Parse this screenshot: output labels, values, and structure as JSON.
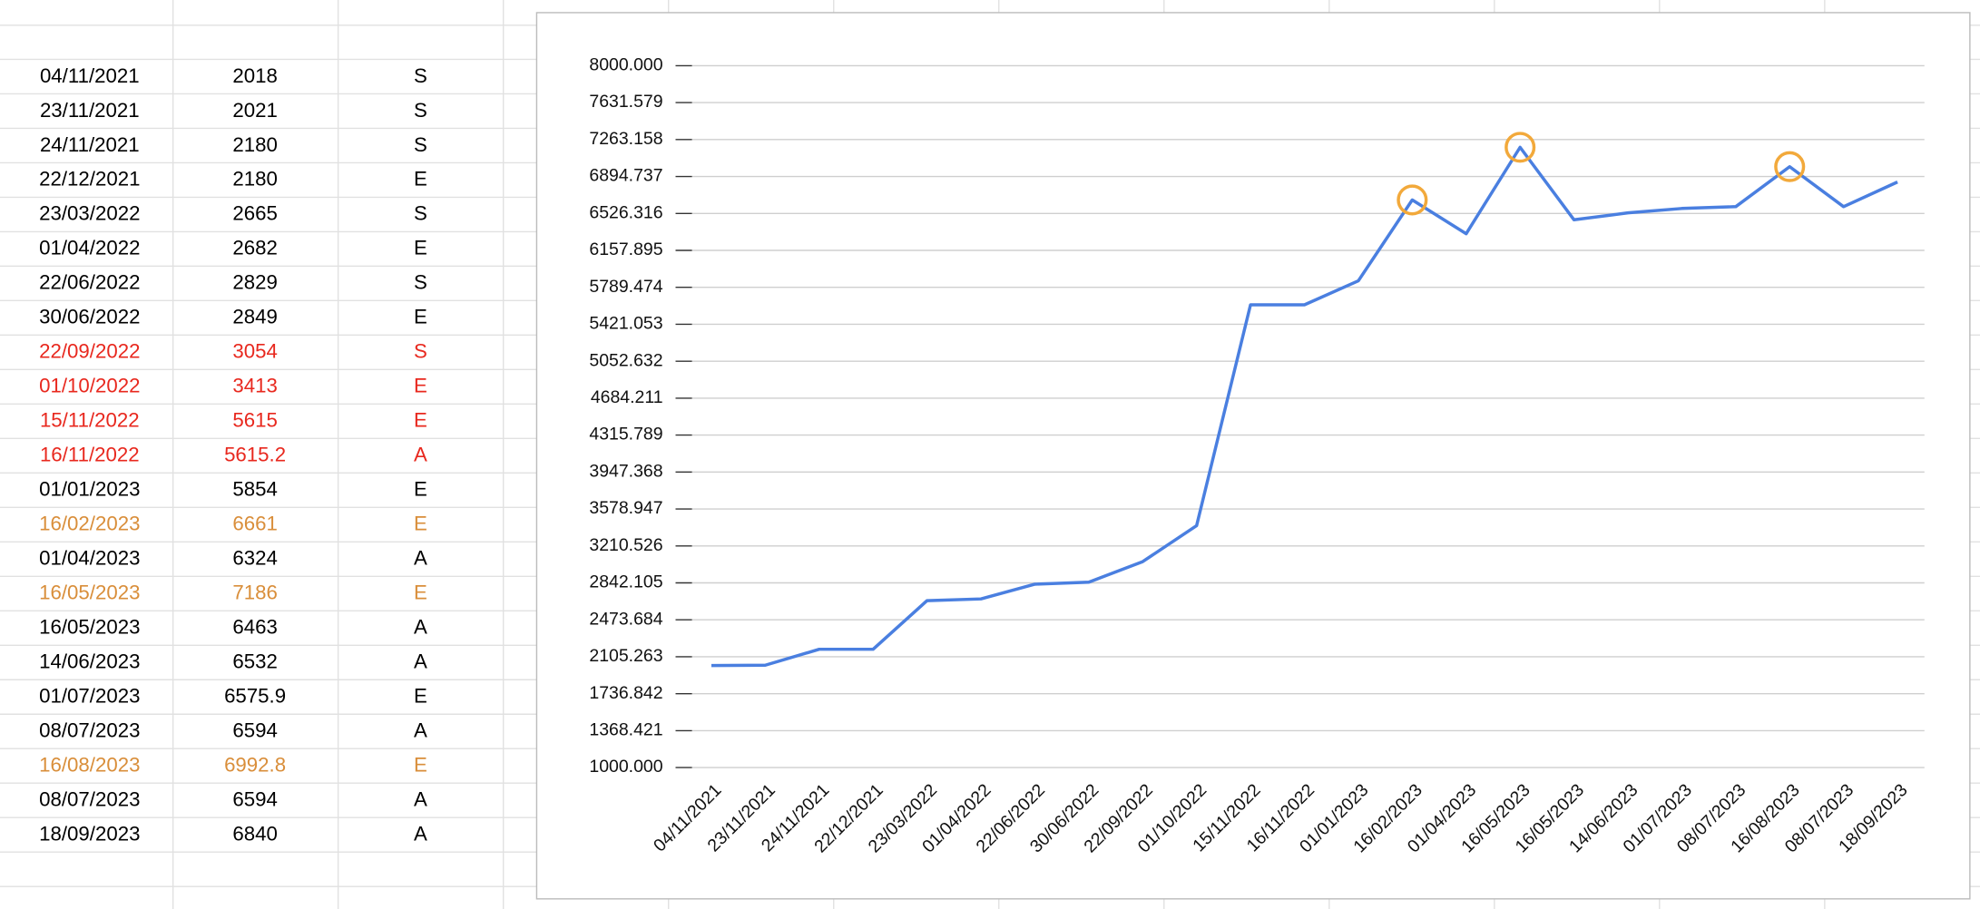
{
  "table": {
    "rows": [
      {
        "cells": [
          "04/11/2021",
          2018,
          "S"
        ],
        "color": "#000000"
      },
      {
        "cells": [
          "23/11/2021",
          2021,
          "S"
        ],
        "color": "#000000"
      },
      {
        "cells": [
          "24/11/2021",
          2180,
          "S"
        ],
        "color": "#000000"
      },
      {
        "cells": [
          "22/12/2021",
          2180,
          "E"
        ],
        "color": "#000000"
      },
      {
        "cells": [
          "23/03/2022",
          2665,
          "S"
        ],
        "color": "#000000"
      },
      {
        "cells": [
          "01/04/2022",
          2682,
          "E"
        ],
        "color": "#000000"
      },
      {
        "cells": [
          "22/06/2022",
          2829,
          "S"
        ],
        "color": "#000000"
      },
      {
        "cells": [
          "30/06/2022",
          2849,
          "E"
        ],
        "color": "#000000"
      },
      {
        "cells": [
          "22/09/2022",
          3054,
          "S"
        ],
        "color": "#e8281e"
      },
      {
        "cells": [
          "01/10/2022",
          3413,
          "E"
        ],
        "color": "#e8281e"
      },
      {
        "cells": [
          "15/11/2022",
          5615,
          "E"
        ],
        "color": "#e8281e"
      },
      {
        "cells": [
          "16/11/2022",
          5615.2,
          "A"
        ],
        "color": "#e8281e"
      },
      {
        "cells": [
          "01/01/2023",
          5854,
          "E"
        ],
        "color": "#000000"
      },
      {
        "cells": [
          "16/02/2023",
          6661,
          "E"
        ],
        "color": "#d98e3a"
      },
      {
        "cells": [
          "01/04/2023",
          6324,
          "A"
        ],
        "color": "#000000"
      },
      {
        "cells": [
          "16/05/2023",
          7186,
          "E"
        ],
        "color": "#d98e3a"
      },
      {
        "cells": [
          "16/05/2023",
          6463,
          "A"
        ],
        "color": "#000000"
      },
      {
        "cells": [
          "14/06/2023",
          6532,
          "A"
        ],
        "color": "#000000"
      },
      {
        "cells": [
          "01/07/2023",
          6575.9,
          "E"
        ],
        "color": "#000000"
      },
      {
        "cells": [
          "08/07/2023",
          6594,
          "A"
        ],
        "color": "#000000"
      },
      {
        "cells": [
          "16/08/2023",
          6992.8,
          "E"
        ],
        "color": "#d98e3a"
      },
      {
        "cells": [
          "08/07/2023",
          6594,
          "A"
        ],
        "color": "#000000"
      },
      {
        "cells": [
          "18/09/2023",
          6840,
          "A"
        ],
        "color": "#000000"
      }
    ]
  },
  "chart_data": {
    "type": "line",
    "categories": [
      "04/11/2021",
      "23/11/2021",
      "24/11/2021",
      "22/12/2021",
      "23/03/2022",
      "01/04/2022",
      "22/06/2022",
      "30/06/2022",
      "22/09/2022",
      "01/10/2022",
      "15/11/2022",
      "16/11/2022",
      "01/01/2023",
      "16/02/2023",
      "01/04/2023",
      "16/05/2023",
      "16/05/2023",
      "14/06/2023",
      "01/07/2023",
      "08/07/2023",
      "16/08/2023",
      "08/07/2023",
      "18/09/2023"
    ],
    "values": [
      2018,
      2021,
      2180,
      2180,
      2665,
      2682,
      2829,
      2849,
      3054,
      3413,
      5615,
      5615.2,
      5854,
      6661,
      6324,
      7186,
      6463,
      6532,
      6575.9,
      6594,
      6992.8,
      6594,
      6840
    ],
    "color": "#4a7fe0",
    "ylim": [
      1000,
      8000
    ],
    "yticks": [
      {
        "value": 1000,
        "label": "1000.000"
      },
      {
        "value": 1368.421,
        "label": "1368.421"
      },
      {
        "value": 1736.842,
        "label": "1736.842"
      },
      {
        "value": 2105.263,
        "label": "2105.263"
      },
      {
        "value": 2473.684,
        "label": "2473.684"
      },
      {
        "value": 2842.105,
        "label": "2842.105"
      },
      {
        "value": 3210.526,
        "label": "3210.526"
      },
      {
        "value": 3578.947,
        "label": "3578.947"
      },
      {
        "value": 3947.368,
        "label": "3947.368"
      },
      {
        "value": 4315.789,
        "label": "4315.789"
      },
      {
        "value": 4684.211,
        "label": "4684.211"
      },
      {
        "value": 5052.632,
        "label": "5052.632"
      },
      {
        "value": 5421.053,
        "label": "5421.053"
      },
      {
        "value": 5789.474,
        "label": "5789.474"
      },
      {
        "value": 6157.895,
        "label": "6157.895"
      },
      {
        "value": 6526.316,
        "label": "6526.316"
      },
      {
        "value": 6894.737,
        "label": "6894.737"
      },
      {
        "value": 7263.158,
        "label": "7263.158"
      },
      {
        "value": 7631.579,
        "label": "7631.579"
      },
      {
        "value": 8000,
        "label": "8000.000"
      }
    ],
    "grid": true,
    "highlight_points": [
      13,
      15,
      20
    ],
    "highlight_color": "#f2a93b"
  }
}
